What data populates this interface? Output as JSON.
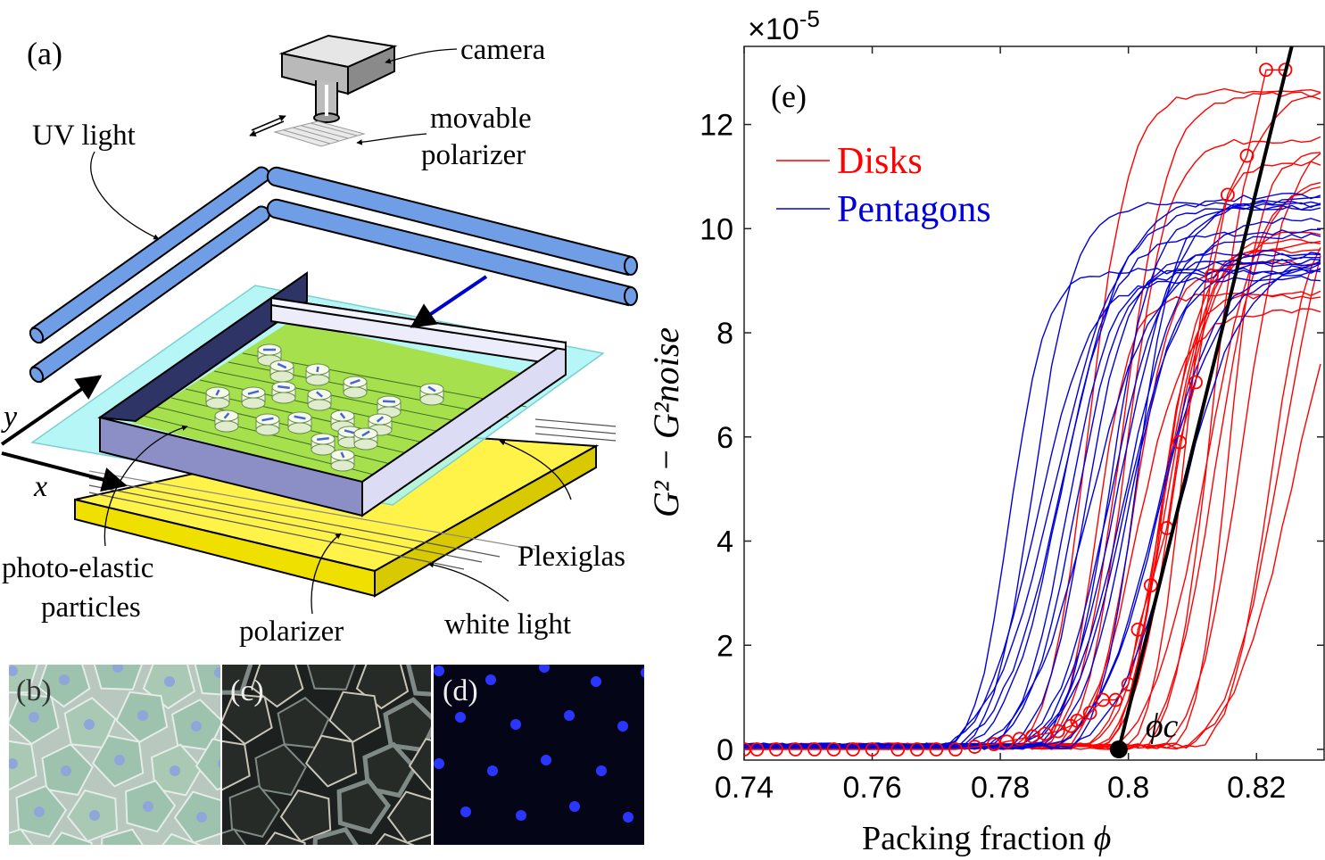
{
  "panels": {
    "a": "(a)",
    "b": "(b)",
    "c": "(c)",
    "d": "(d)",
    "e": "(e)"
  },
  "schematic_labels": {
    "camera": "camera",
    "movable1": "movable",
    "movable2": "polarizer",
    "uv": "UV light",
    "photo1": "photo-elastic",
    "photo2": "particles",
    "plexiglas": "Plexiglas",
    "polarizer": "polarizer",
    "white_light": "white light",
    "axis_y": "y",
    "axis_x": "x"
  },
  "colors": {
    "disks": "#ff0000",
    "pentagons": "#0000dd",
    "fit": "#000000",
    "uv_tube": "#6f9ee6",
    "plate_yellow": "#fff000",
    "plate_green": "#9fe04c",
    "plate_cyan": "#a9f4f4",
    "wall_dark": "#3a3f6e",
    "wall_light": "#dcdcf5"
  },
  "chart_data": {
    "type": "line",
    "xlabel": "Packing fraction",
    "xlabel_symbol": "ϕ",
    "ylabel": "G² − G²noise",
    "exponent_label": "×10",
    "exponent_power": "-5",
    "xlim": [
      0.74,
      0.83
    ],
    "ylim": [
      0,
      13.5
    ],
    "xticks": [
      0.74,
      0.76,
      0.78,
      0.8,
      0.82
    ],
    "xtick_labels": [
      "0.74",
      "0.76",
      "0.78",
      "0.8",
      "0.82"
    ],
    "yticks": [
      0,
      2,
      4,
      6,
      8,
      10,
      12
    ],
    "ytick_labels": [
      "0",
      "2",
      "4",
      "6",
      "8",
      "10",
      "12"
    ],
    "legend": {
      "position": "top-left",
      "entries": [
        {
          "name": "Disks",
          "color": "#ff0000"
        },
        {
          "name": "Pentagons",
          "color": "#0000dd"
        }
      ]
    },
    "phi_c": {
      "x": 0.7985,
      "label": "ϕc"
    },
    "fit_line": {
      "x": [
        0.7985,
        0.8255
      ],
      "y": [
        0,
        13.5
      ]
    },
    "series": [
      {
        "name": "Disks",
        "type": "sweeps",
        "count": 20,
        "onset_range": [
          0.783,
          0.812
        ],
        "max_y_range": [
          8.5,
          13.4
        ]
      },
      {
        "name": "Pentagons",
        "type": "sweeps",
        "count": 20,
        "onset_range": [
          0.768,
          0.792
        ],
        "max_y_range": [
          9.0,
          11.0
        ]
      },
      {
        "name": "Disks (averaged)",
        "marker": "circle",
        "x": [
          0.74,
          0.742,
          0.745,
          0.748,
          0.751,
          0.754,
          0.757,
          0.76,
          0.764,
          0.767,
          0.77,
          0.773,
          0.776,
          0.779,
          0.781,
          0.783,
          0.785,
          0.787,
          0.789,
          0.791,
          0.792,
          0.794,
          0.796,
          0.798,
          0.8,
          0.8015,
          0.8035,
          0.806,
          0.808,
          0.8105,
          0.813,
          0.8155,
          0.8185,
          0.8215,
          0.8245
        ],
        "y": [
          0,
          0,
          0,
          0,
          0,
          0,
          0,
          0,
          0,
          0,
          0,
          0,
          0.05,
          0.1,
          0.15,
          0.2,
          0.25,
          0.3,
          0.35,
          0.45,
          0.55,
          0.7,
          0.95,
          0.95,
          1.25,
          2.3,
          3.15,
          4.25,
          5.9,
          7.05,
          9.1,
          10.65,
          11.4,
          13.05,
          13.05
        ]
      }
    ]
  }
}
